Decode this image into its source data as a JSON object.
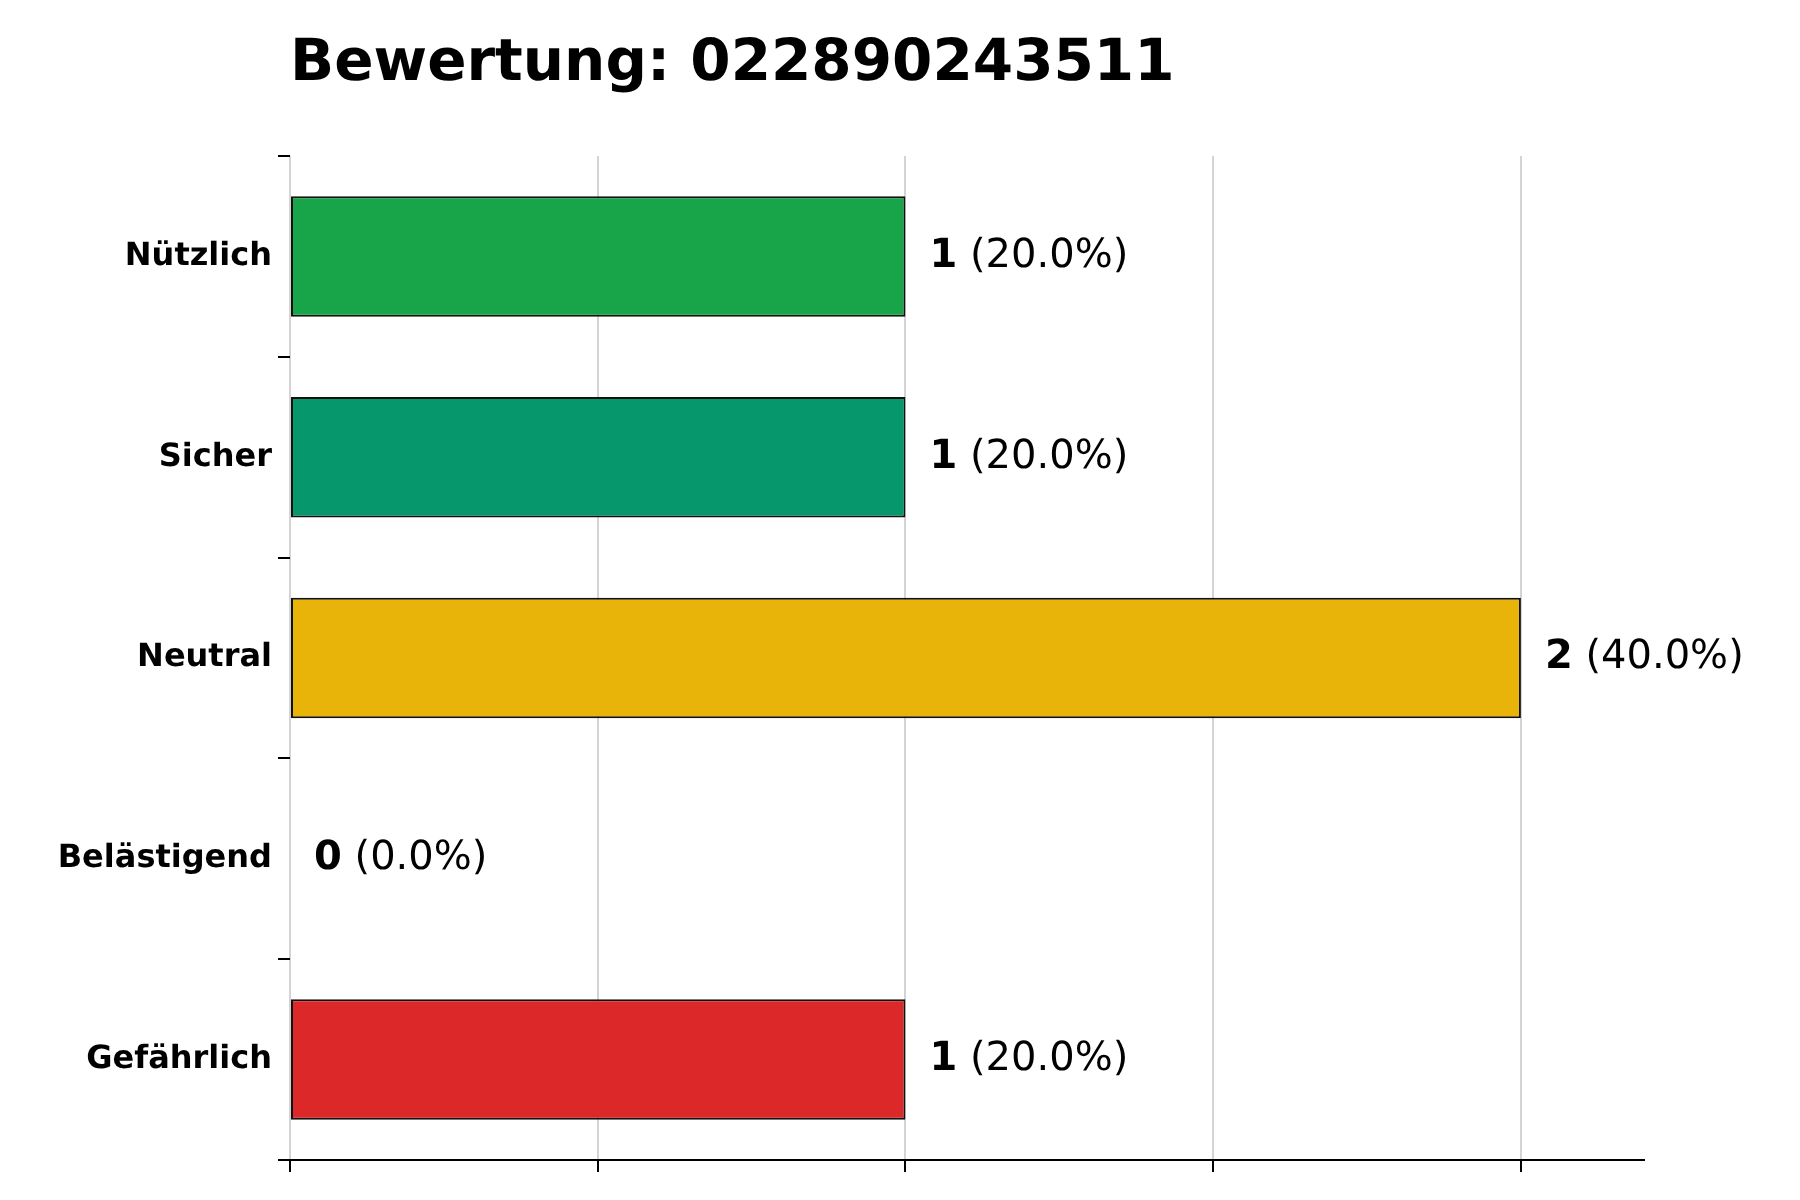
{
  "chart_data": {
    "type": "bar",
    "orientation": "horizontal",
    "title": "Bewertung: 022890243511",
    "categories": [
      "Nützlich",
      "Sicher",
      "Neutral",
      "Belästigend",
      "Gefährlich"
    ],
    "values": [
      1,
      1,
      2,
      0,
      1
    ],
    "colors": [
      "#18a54a",
      "#06986c",
      "#e8b40a",
      "#8b1a1a",
      "#dc2828"
    ],
    "value_labels": [
      "1 (20.0%)",
      "1 (20.0%)",
      "2 (40.0%)",
      "0 (0.0%)",
      "1 (20.0%)"
    ],
    "xlim": [
      0,
      2.2
    ],
    "xticks": [
      {
        "value": 0,
        "label": null
      },
      {
        "value": 0.5,
        "label": null
      },
      {
        "value": 1,
        "label": null
      },
      {
        "value": 1.5,
        "label": null
      },
      {
        "value": 2,
        "label": null
      }
    ],
    "grid": "x"
  }
}
